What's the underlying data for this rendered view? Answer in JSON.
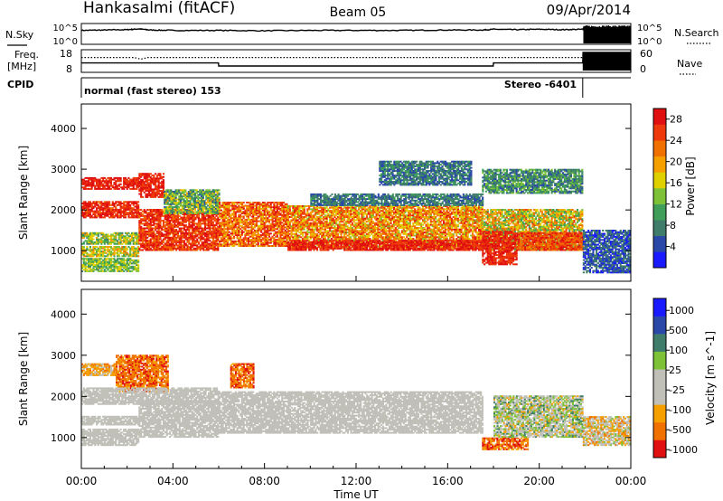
{
  "header": {
    "station": "Hankasalmi (fitACF)",
    "beam": "Beam 05",
    "date": "09/Apr/2014"
  },
  "colors": {
    "power_scale": [
      "#1a1aff",
      "#2a48a8",
      "#3f7d6a",
      "#3e9e5a",
      "#7dc236",
      "#e0d000",
      "#f5a000",
      "#f07000",
      "#ee3a0a",
      "#e01010"
    ],
    "velocity_scale": [
      "#e01010",
      "#f07000",
      "#f5a000",
      "#c0c0b8",
      "#c0c0b8",
      "#7dc236",
      "#3f7d6a",
      "#2a48a8",
      "#1a1aff"
    ],
    "ground_scatter": "#c0c0b8"
  },
  "chart_data": [
    {
      "type": "line",
      "panel": "noise",
      "left_label": "N.Sky",
      "right_label": "N.Search",
      "left_ticks": [
        "10^5",
        "10^0"
      ],
      "right_ticks": [
        "10^5",
        "10^0"
      ],
      "x_range_hours": [
        0,
        24
      ],
      "log_y_range": [
        0,
        5
      ],
      "series": [
        {
          "style": "solid",
          "x": [
            0,
            1,
            2,
            2.5,
            3,
            4,
            6,
            8,
            10,
            12,
            14,
            16,
            17.5,
            18,
            19,
            20,
            21,
            21.9,
            22,
            23,
            24
          ],
          "values": [
            3.6,
            3.7,
            3.8,
            4.0,
            3.7,
            3.6,
            3.6,
            3.5,
            3.6,
            3.6,
            3.6,
            3.7,
            3.7,
            3.9,
            3.8,
            3.9,
            3.8,
            3.9,
            4.3,
            4.4,
            4.4
          ]
        }
      ]
    },
    {
      "type": "line",
      "panel": "frequency-nave",
      "left_label_line1": "Freq.",
      "left_label_line2": "[MHz]",
      "right_label": "Nave",
      "left_ticks": [
        "18",
        "8"
      ],
      "right_ticks": [
        "60",
        "0"
      ],
      "x_range_hours": [
        0,
        24
      ],
      "series": [
        {
          "name": "Freq.",
          "style": "solid",
          "x": [
            0,
            5.99,
            6,
            17.99,
            18,
            21.9,
            21.91,
            24
          ],
          "values": [
            12.0,
            12.0,
            10.4,
            10.4,
            12.0,
            12.0,
            17.5,
            17.5
          ]
        },
        {
          "name": "Nave",
          "style": "dotted",
          "x": [
            0,
            2.3,
            2.6,
            2.9,
            24
          ],
          "values": [
            41,
            41,
            36,
            41,
            41
          ]
        }
      ]
    },
    {
      "type": "table",
      "panel": "cpid",
      "label": "CPID",
      "segments": [
        {
          "start": 0,
          "end": 21.9,
          "text": "normal (fast stereo) 153"
        },
        {
          "start": 21.9,
          "end": 24,
          "text": "Stereo -6401"
        }
      ]
    },
    {
      "type": "heatmap",
      "panel": "power",
      "ylabel": "Slant Range [km]",
      "yticks": [
        1000,
        2000,
        3000,
        4000
      ],
      "ylim": [
        250,
        4600
      ],
      "colorbar_label": "Power [dB]",
      "colorbar_ticks": [
        4,
        8,
        12,
        16,
        20,
        24,
        28
      ],
      "colorbar_range": [
        0,
        30
      ],
      "bands": [
        {
          "t0": 0,
          "t1": 2.5,
          "r0": 2500,
          "r1": 2800,
          "v": 27,
          "spread": 3
        },
        {
          "t0": 0,
          "t1": 2.5,
          "r0": 1800,
          "r1": 2200,
          "v": 27,
          "spread": 4
        },
        {
          "t0": 0,
          "t1": 2.5,
          "r0": 1150,
          "r1": 1450,
          "v": 14,
          "spread": 6
        },
        {
          "t0": 0,
          "t1": 2.5,
          "r0": 850,
          "r1": 1100,
          "v": 16,
          "spread": 6
        },
        {
          "t0": 0,
          "t1": 2.5,
          "r0": 480,
          "r1": 800,
          "v": 13,
          "spread": 5
        },
        {
          "t0": 2.5,
          "t1": 3.6,
          "r0": 2300,
          "r1": 2900,
          "v": 27,
          "spread": 3
        },
        {
          "t0": 2.5,
          "t1": 6,
          "r0": 1000,
          "r1": 2000,
          "v": 26,
          "spread": 4
        },
        {
          "t0": 3.6,
          "t1": 6,
          "r0": 1900,
          "r1": 2500,
          "v": 12,
          "spread": 7
        },
        {
          "t0": 6,
          "t1": 9,
          "r0": 1100,
          "r1": 2200,
          "v": 23,
          "spread": 6
        },
        {
          "t0": 9,
          "t1": 17.5,
          "r0": 1050,
          "r1": 2100,
          "v": 21,
          "spread": 7
        },
        {
          "t0": 9,
          "t1": 17.5,
          "r0": 1000,
          "r1": 1250,
          "v": 27,
          "spread": 3
        },
        {
          "t0": 10,
          "t1": 17.5,
          "r0": 2100,
          "r1": 2400,
          "v": 7,
          "spread": 3
        },
        {
          "t0": 13,
          "t1": 17,
          "r0": 2600,
          "r1": 3200,
          "v": 7,
          "spread": 4
        },
        {
          "t0": 17.5,
          "t1": 21.9,
          "r0": 2400,
          "r1": 3000,
          "v": 9,
          "spread": 5
        },
        {
          "t0": 17.5,
          "t1": 21.9,
          "r0": 1000,
          "r1": 2000,
          "v": 17,
          "spread": 8
        },
        {
          "t0": 17.5,
          "t1": 19,
          "r0": 650,
          "r1": 1450,
          "v": 27,
          "spread": 3
        },
        {
          "t0": 19,
          "t1": 21.9,
          "r0": 1000,
          "r1": 1450,
          "v": 25,
          "spread": 4
        },
        {
          "t0": 21.9,
          "t1": 24,
          "r0": 450,
          "r1": 1500,
          "v": 5,
          "spread": 4
        }
      ]
    },
    {
      "type": "heatmap",
      "panel": "velocity",
      "ylabel": "Slant Range [km]",
      "yticks": [
        1000,
        2000,
        3000,
        4000
      ],
      "ylim": [
        250,
        4600
      ],
      "colorbar_label": "Velocity [m s^-1]",
      "colorbar_ticks": [
        "1000",
        "500",
        "100",
        "25",
        "-25",
        "-100",
        "-500",
        "-1000"
      ],
      "xlabel": "Time UT",
      "xticks": [
        "00:00",
        "04:00",
        "08:00",
        "12:00",
        "16:00",
        "20:00",
        "00:00"
      ],
      "xlim_hours": [
        0,
        24
      ],
      "bands": [
        {
          "t0": 0,
          "t1": 1.5,
          "r0": 2500,
          "r1": 2800,
          "v": 2,
          "spread": 1
        },
        {
          "t0": 1.5,
          "t1": 3.8,
          "r0": 2100,
          "r1": 3000,
          "v": 1,
          "spread": 1
        },
        {
          "t0": 0,
          "t1": 6,
          "r0": 1800,
          "r1": 2200,
          "v": 4,
          "spread": 0
        },
        {
          "t0": 0,
          "t1": 2.5,
          "r0": 1300,
          "r1": 1500,
          "v": 4,
          "spread": 0
        },
        {
          "t0": 0,
          "t1": 2.5,
          "r0": 800,
          "r1": 1200,
          "v": 4,
          "spread": 0
        },
        {
          "t0": 2.5,
          "t1": 6,
          "r0": 1000,
          "r1": 1900,
          "v": 4,
          "spread": 0
        },
        {
          "t0": 6,
          "t1": 17.5,
          "r0": 1100,
          "r1": 2100,
          "v": 4,
          "spread": 0
        },
        {
          "t0": 6.5,
          "t1": 7.5,
          "r0": 2200,
          "r1": 2800,
          "v": 1,
          "spread": 1
        },
        {
          "t0": 17.5,
          "t1": 19.5,
          "r0": 700,
          "r1": 1000,
          "v": 1,
          "spread": 1
        },
        {
          "t0": 18,
          "t1": 21.9,
          "r0": 1000,
          "r1": 2000,
          "v": 4,
          "spread": 2
        },
        {
          "t0": 21.9,
          "t1": 24,
          "r0": 800,
          "r1": 1500,
          "v": 3,
          "spread": 2
        }
      ]
    }
  ]
}
